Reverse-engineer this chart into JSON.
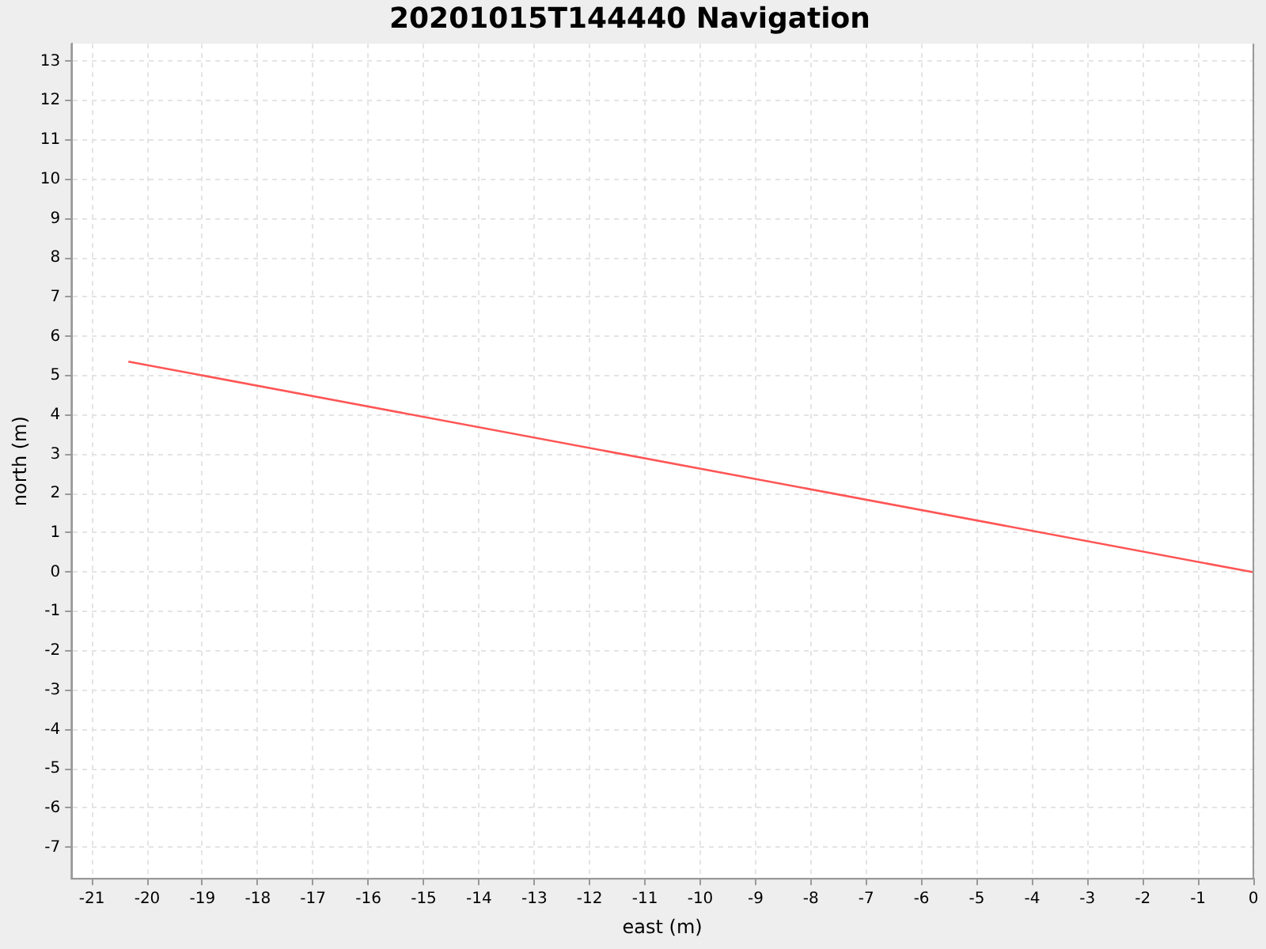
{
  "chart_data": {
    "type": "line",
    "title": "20201015T144440 Navigation",
    "xlabel": "east (m)",
    "ylabel": "north (m)",
    "x": [
      -20.34,
      0
    ],
    "series": [
      {
        "color": "#ff5555",
        "values": [
          5.36,
          0
        ]
      }
    ],
    "xlim": [
      -21.37,
      0
    ],
    "ylim": [
      -7.8,
      13.45
    ],
    "xticks": [
      -21,
      -20,
      -19,
      -18,
      -17,
      -16,
      -15,
      -14,
      -13,
      -12,
      -11,
      -10,
      -9,
      -8,
      -7,
      -6,
      -5,
      -4,
      -3,
      -2,
      -1,
      0
    ],
    "yticks": [
      -7,
      -6,
      -5,
      -4,
      -3,
      -2,
      -1,
      0,
      1,
      2,
      3,
      4,
      5,
      6,
      7,
      8,
      9,
      10,
      11,
      12,
      13
    ],
    "grid": true,
    "legend": false,
    "marker": "none",
    "line_style": "solid"
  }
}
